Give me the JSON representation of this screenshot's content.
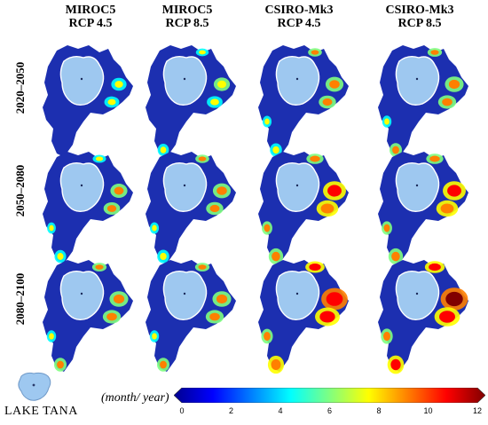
{
  "columns": [
    {
      "model": "MIROC5",
      "scenario": "RCP 4.5"
    },
    {
      "model": "MIROC5",
      "scenario": "RCP 8.5"
    },
    {
      "model": "CSIRO-Mk3",
      "scenario": "RCP 4.5"
    },
    {
      "model": "CSIRO-Mk3",
      "scenario": "RCP 8.5"
    }
  ],
  "rows": [
    "2020–2050",
    "2050–2080",
    "2080–2100"
  ],
  "legend": {
    "lake_label": "LAKE TANA",
    "unit_label": "(month/ year)",
    "ticks": [
      "0",
      "2",
      "4",
      "6",
      "8",
      "10",
      "12"
    ],
    "range": [
      0,
      12
    ],
    "colormap": [
      "#00008f",
      "#0000ff",
      "#0080ff",
      "#00ffff",
      "#80ff80",
      "#ffff00",
      "#ff8000",
      "#ff0000",
      "#800000"
    ]
  },
  "colors": {
    "lake": "#9ec8f0",
    "low": "#1c2fb0",
    "high": "#a01010"
  },
  "intensity": [
    [
      0.15,
      0.2,
      0.3,
      0.35
    ],
    [
      0.25,
      0.3,
      0.6,
      0.6
    ],
    [
      0.35,
      0.35,
      0.8,
      0.85
    ]
  ]
}
